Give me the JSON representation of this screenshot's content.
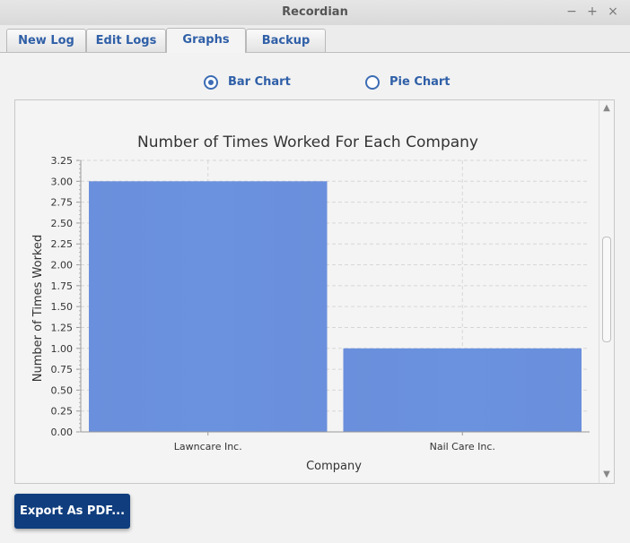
{
  "window": {
    "title": "Recordian",
    "minimize": "−",
    "maximize": "+",
    "close": "×"
  },
  "tabs": [
    {
      "label": "New Log"
    },
    {
      "label": "Edit Logs"
    },
    {
      "label": "Graphs",
      "active": true
    },
    {
      "label": "Backup"
    }
  ],
  "chart_type_options": [
    {
      "label": "Bar Chart",
      "selected": true
    },
    {
      "label": "Pie Chart",
      "selected": false
    }
  ],
  "scroll_arrows": {
    "up": "▲",
    "down": "▼"
  },
  "export_button": "Export As PDF...",
  "colors": {
    "accent": "#3c6cb4",
    "bar": "#6a92df",
    "export_bg": "#0f3d7e"
  },
  "chart_data": {
    "type": "bar",
    "title": "Number of Times Worked For Each Company",
    "xlabel": "Company",
    "ylabel": "Number of Times Worked",
    "categories": [
      "Lawncare Inc.",
      "Nail Care Inc."
    ],
    "values": [
      3,
      1
    ],
    "ylim": [
      0,
      3.25
    ],
    "yticks": [
      "0.00",
      "0.25",
      "0.50",
      "0.75",
      "1.00",
      "1.25",
      "1.50",
      "1.75",
      "2.00",
      "2.25",
      "2.50",
      "2.75",
      "3.00",
      "3.25"
    ],
    "grid": true,
    "legend": false
  }
}
